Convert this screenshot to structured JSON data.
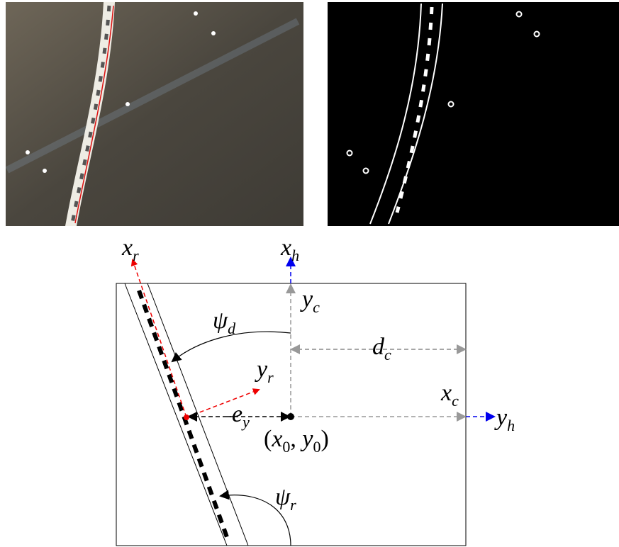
{
  "labels": [
    {
      "symbol": "x",
      "sub": "r"
    },
    {
      "symbol": "x",
      "sub": "h"
    },
    {
      "symbol": "y",
      "sub": "c"
    },
    {
      "symbol": "ψ",
      "sub": "d"
    },
    {
      "symbol": "d",
      "sub": "c"
    },
    {
      "symbol": "y",
      "sub": "r"
    },
    {
      "symbol": "x",
      "sub": "c"
    },
    {
      "symbol": "y",
      "sub": "h"
    },
    {
      "symbol": "e",
      "sub": "y"
    },
    {
      "symbol": "ψ",
      "sub": "r"
    }
  ],
  "origin": {
    "open": "(",
    "x": "x",
    "x_sub": "0",
    "sep": ", ",
    "y": "y",
    "y_sub": "0",
    "close": ")"
  }
}
